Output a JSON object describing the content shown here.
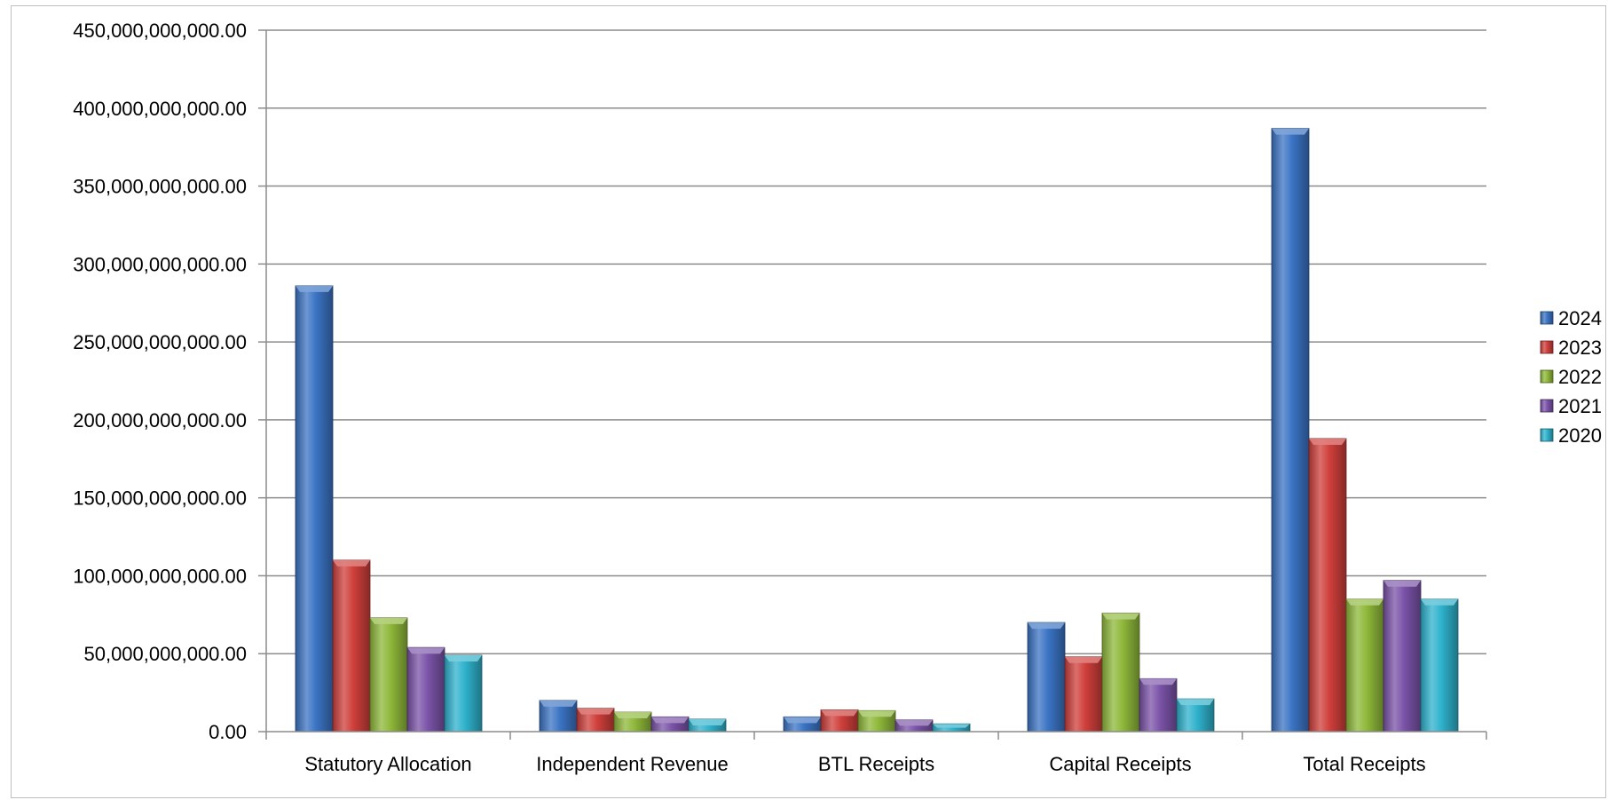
{
  "chart_data": {
    "type": "bar",
    "categories": [
      "Statutory Allocation",
      "Independent Revenue",
      "BTL Receipts",
      "Capital Receipts",
      "Total Receipts"
    ],
    "series": [
      {
        "name": "2024",
        "color": "#3b74c4",
        "values": [
          286000000000,
          20000000000,
          9500000000,
          70000000000,
          387000000000
        ]
      },
      {
        "name": "2023",
        "color": "#cf3f3b",
        "values": [
          110000000000,
          15000000000,
          14000000000,
          48000000000,
          188000000000
        ]
      },
      {
        "name": "2022",
        "color": "#8fb83a",
        "values": [
          73000000000,
          12500000000,
          13500000000,
          76000000000,
          85000000000
        ]
      },
      {
        "name": "2021",
        "color": "#7b53a8",
        "values": [
          54000000000,
          9500000000,
          7500000000,
          34000000000,
          97000000000
        ]
      },
      {
        "name": "2020",
        "color": "#2fb2cc",
        "values": [
          49000000000,
          8000000000,
          5000000000,
          21000000000,
          85000000000
        ]
      }
    ],
    "yticks": [
      "0.00",
      "50,000,000,000.00",
      "100,000,000,000.00",
      "150,000,000,000.00",
      "200,000,000,000.00",
      "250,000,000,000.00",
      "300,000,000,000.00",
      "350,000,000,000.00",
      "400,000,000,000.00",
      "450,000,000,000.00"
    ],
    "ylim": [
      0,
      450000000000
    ],
    "title": "",
    "xlabel": "",
    "ylabel": "",
    "grid": true,
    "legend_position": "right"
  }
}
